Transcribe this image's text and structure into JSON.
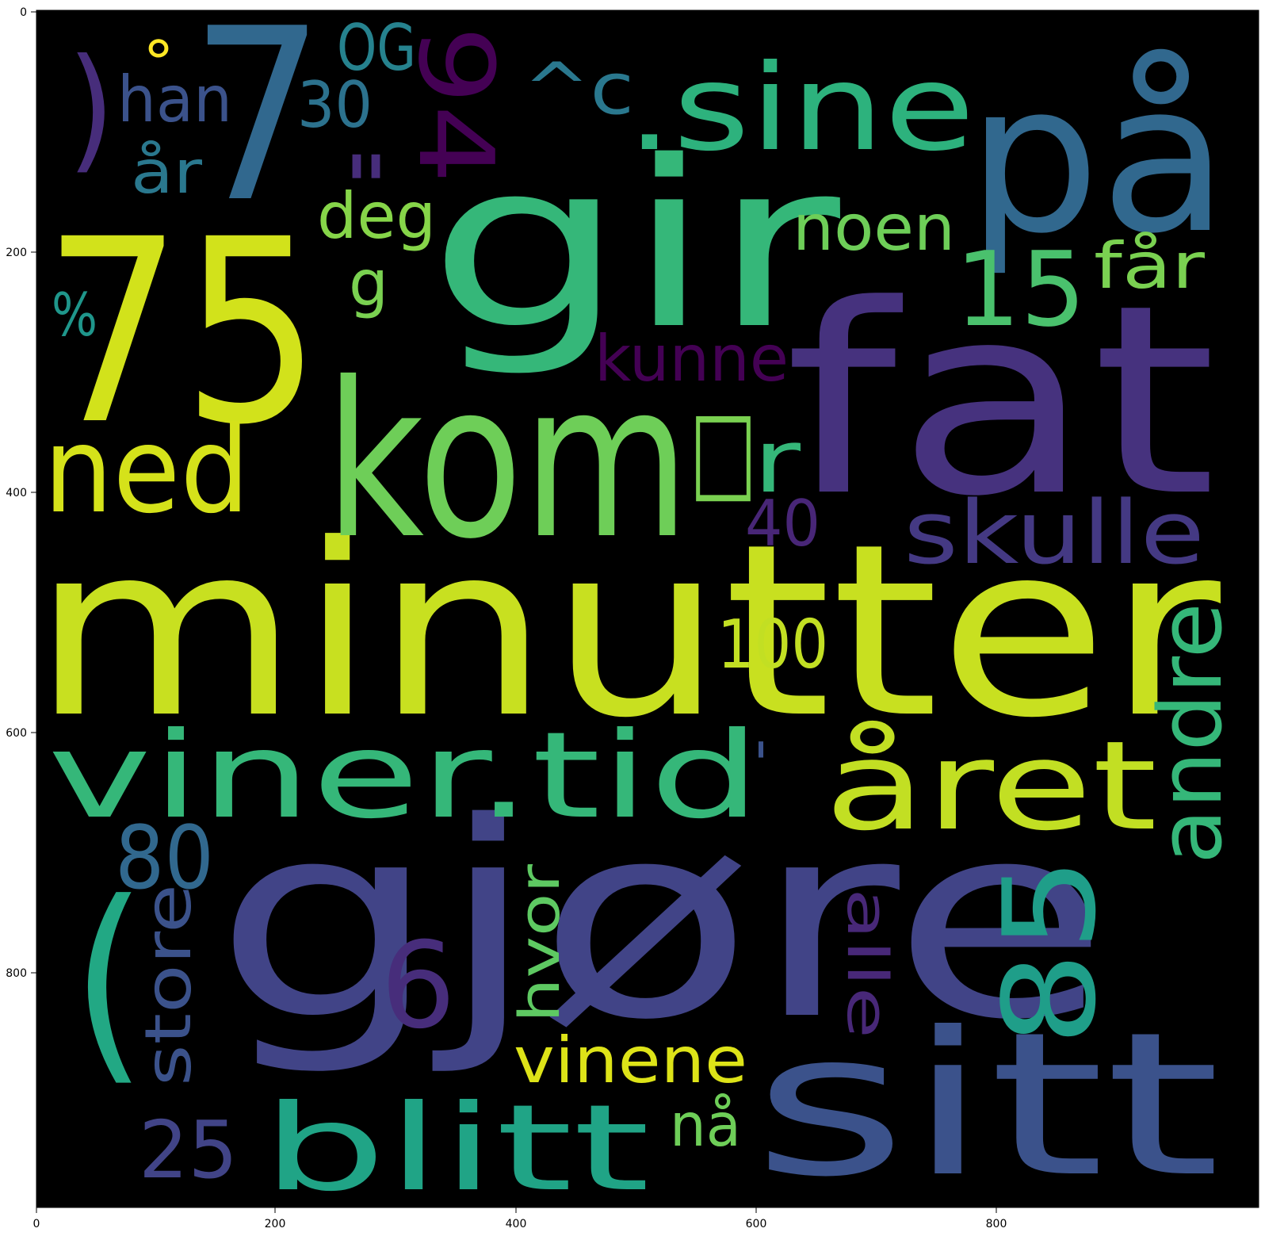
{
  "plot": {
    "background": "#000000",
    "x_ticks": [
      "0",
      "200",
      "400",
      "600",
      "800"
    ],
    "y_ticks": [
      "0",
      "200",
      "400",
      "600",
      "800"
    ]
  },
  "words": [
    {
      "text": "minutter",
      "color": "#c8e020"
    },
    {
      "text": "gjøre",
      "color": "#414487"
    },
    {
      "text": "gir",
      "color": "#35b779"
    },
    {
      "text": "fat",
      "color": "#46327e"
    },
    {
      "text": "75",
      "color": "#d2e21b"
    },
    {
      "text": "kom",
      "color": "#6ece58"
    },
    {
      "text": "sitt",
      "color": "#3b528b"
    },
    {
      "text": "på",
      "color": "#31688e"
    },
    {
      "text": "7",
      "color": "#31688e"
    },
    {
      "text": "viner.tid",
      "color": "#35b779"
    },
    {
      "text": ".sine",
      "color": "#2db27d"
    },
    {
      "text": "året",
      "color": "#c2df23"
    },
    {
      "text": "blitt",
      "color": "#20a486"
    },
    {
      "text": "ned",
      "color": "#d5e21a"
    },
    {
      "text": "(",
      "color": "#22a884"
    },
    {
      "text": "85",
      "color": "#1f9e89"
    },
    {
      "text": "andre",
      "color": "#35b779"
    },
    {
      "text": "skulle",
      "color": "#443983"
    },
    {
      "text": "94",
      "color": "#440154"
    },
    {
      "text": "100",
      "color": "#c2df23"
    },
    {
      "text": "15",
      "color": "#4ac16d"
    },
    {
      "text": "vinene",
      "color": "#dde318"
    },
    {
      "text": "kunne",
      "color": "#440154"
    },
    {
      "text": "noen",
      "color": "#6ece58"
    },
    {
      "text": "80",
      "color": "#31688e"
    },
    {
      "text": "store",
      "color": "#3b528b"
    },
    {
      "text": "6",
      "color": "#472d7b"
    },
    {
      "text": "25",
      "color": "#414487"
    },
    {
      "text": "får",
      "color": "#7ad151"
    },
    {
      "text": "deg",
      "color": "#86d549"
    },
    {
      "text": "han",
      "color": "#3b528b"
    },
    {
      "text": "30",
      "color": "#2c728e"
    },
    {
      "text": "OG",
      "color": "#26828e"
    },
    {
      "text": "^c",
      "color": "#2a788e"
    },
    {
      "text": ")",
      "color": "#472d7b"
    },
    {
      "text": "år",
      "color": "#2a788e"
    },
    {
      "text": "40",
      "color": "#482677"
    },
    {
      "text": "hvor",
      "color": "#5ec962"
    },
    {
      "text": "alle",
      "color": "#482878"
    },
    {
      "text": "nå",
      "color": "#6ece58"
    },
    {
      "text": "r",
      "color": "#35b779"
    },
    {
      "text": "g",
      "color": "#7ad151"
    },
    {
      "text": "%",
      "color": "#1f968b"
    },
    {
      "text": "\"",
      "color": "#472d7b"
    },
    {
      "text": "°",
      "color": "#fde725"
    },
    {
      "text": "'",
      "color": "#3b528b"
    },
    {
      "text": "□",
      "color": "#7ad151"
    }
  ]
}
